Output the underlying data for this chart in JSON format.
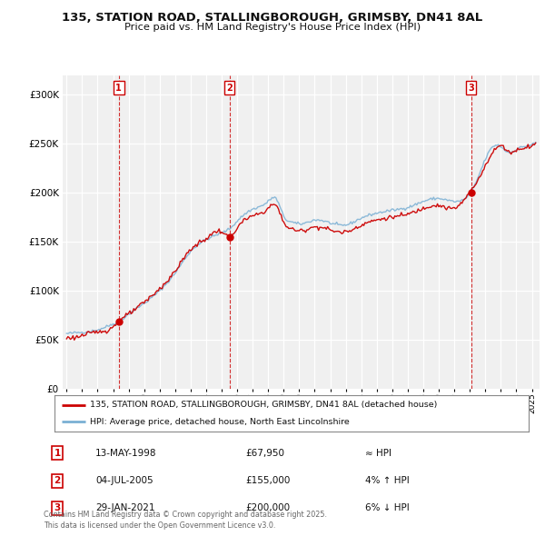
{
  "title_line1": "135, STATION ROAD, STALLINGBOROUGH, GRIMSBY, DN41 8AL",
  "title_line2": "Price paid vs. HM Land Registry's House Price Index (HPI)",
  "background_color": "#ffffff",
  "plot_background": "#f0f0f0",
  "grid_color": "#ffffff",
  "sale_dates": [
    "1998-05-13",
    "2005-07-04",
    "2021-01-29"
  ],
  "sale_prices": [
    67950,
    155000,
    200000
  ],
  "sale_labels": [
    "1",
    "2",
    "3"
  ],
  "legend_property": "135, STATION ROAD, STALLINGBOROUGH, GRIMSBY, DN41 8AL (detached house)",
  "legend_hpi": "HPI: Average price, detached house, North East Lincolnshire",
  "table_entries": [
    {
      "num": "1",
      "date": "13-MAY-1998",
      "price": "£67,950",
      "rel": "≈ HPI"
    },
    {
      "num": "2",
      "date": "04-JUL-2005",
      "price": "£155,000",
      "rel": "4% ↑ HPI"
    },
    {
      "num": "3",
      "date": "29-JAN-2021",
      "price": "£200,000",
      "rel": "6% ↓ HPI"
    }
  ],
  "footnote": "Contains HM Land Registry data © Crown copyright and database right 2025.\nThis data is licensed under the Open Government Licence v3.0.",
  "property_color": "#cc0000",
  "hpi_color": "#7ab0d4",
  "vline_color": "#cc0000",
  "ylim": [
    0,
    320000
  ],
  "yticks": [
    0,
    50000,
    100000,
    150000,
    200000,
    250000,
    300000
  ]
}
